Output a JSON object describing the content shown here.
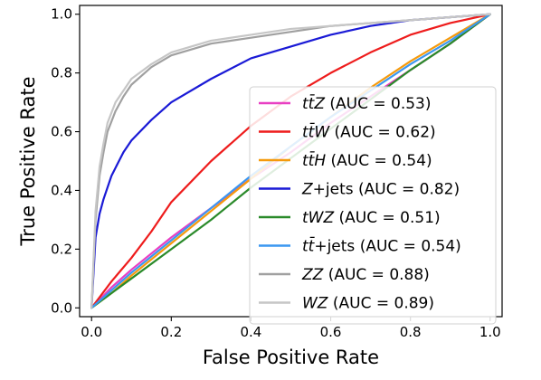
{
  "chart_data": {
    "type": "line",
    "xlabel": "False Positive Rate",
    "ylabel": "True Positive Rate",
    "xlim": [
      -0.03,
      1.03
    ],
    "ylim": [
      -0.03,
      1.03
    ],
    "xticks": [
      "0.0",
      "0.2",
      "0.4",
      "0.6",
      "0.8",
      "1.0"
    ],
    "yticks": [
      "0.0",
      "0.2",
      "0.4",
      "0.6",
      "0.8",
      "1.0"
    ],
    "grid": false,
    "legend_position": "lower-right",
    "series": [
      {
        "name": "ttZ",
        "label_math": "tt̄Z",
        "label_text": "(AUC = 0.53)",
        "color": "#e83fc3",
        "x": [
          0.0,
          0.05,
          0.1,
          0.2,
          0.3,
          0.4,
          0.5,
          0.6,
          0.7,
          0.8,
          0.9,
          1.0
        ],
        "y": [
          0.0,
          0.07,
          0.13,
          0.24,
          0.34,
          0.44,
          0.53,
          0.63,
          0.72,
          0.81,
          0.9,
          1.0
        ]
      },
      {
        "name": "ttW",
        "label_math": "tt̄W",
        "label_text": "(AUC = 0.62)",
        "color": "#ee1c1c",
        "x": [
          0.0,
          0.05,
          0.1,
          0.15,
          0.2,
          0.3,
          0.4,
          0.5,
          0.6,
          0.7,
          0.8,
          0.9,
          1.0
        ],
        "y": [
          0.0,
          0.09,
          0.17,
          0.26,
          0.36,
          0.5,
          0.62,
          0.72,
          0.8,
          0.87,
          0.93,
          0.97,
          1.0
        ]
      },
      {
        "name": "ttH",
        "label_math": "tt̄H",
        "label_text": "(AUC = 0.54)",
        "color": "#f59a0c",
        "x": [
          0.0,
          0.05,
          0.1,
          0.2,
          0.3,
          0.4,
          0.5,
          0.6,
          0.7,
          0.8,
          0.9,
          1.0
        ],
        "y": [
          0.0,
          0.05,
          0.11,
          0.22,
          0.33,
          0.44,
          0.55,
          0.65,
          0.75,
          0.84,
          0.92,
          1.0
        ]
      },
      {
        "name": "Z+jets",
        "label_math": "Z",
        "label_text": "+jets (AUC = 0.82)",
        "color": "#1a1ad6",
        "x": [
          0.0,
          0.01,
          0.02,
          0.03,
          0.05,
          0.08,
          0.1,
          0.15,
          0.2,
          0.3,
          0.4,
          0.5,
          0.6,
          0.7,
          0.8,
          0.9,
          1.0
        ],
        "y": [
          0.0,
          0.24,
          0.32,
          0.37,
          0.45,
          0.53,
          0.57,
          0.64,
          0.7,
          0.78,
          0.85,
          0.89,
          0.93,
          0.96,
          0.98,
          0.99,
          1.0
        ]
      },
      {
        "name": "tWZ",
        "label_math": "tWZ",
        "label_text": "(AUC = 0.51)",
        "color": "#2a8a2a",
        "x": [
          0.0,
          0.05,
          0.1,
          0.2,
          0.3,
          0.4,
          0.5,
          0.6,
          0.7,
          0.8,
          0.9,
          1.0
        ],
        "y": [
          0.0,
          0.05,
          0.1,
          0.2,
          0.3,
          0.41,
          0.51,
          0.61,
          0.71,
          0.81,
          0.9,
          1.0
        ]
      },
      {
        "name": "tt+jets",
        "label_math": "tt̄",
        "label_text": "+jets (AUC = 0.54)",
        "color": "#3b97f0",
        "x": [
          0.0,
          0.05,
          0.1,
          0.2,
          0.3,
          0.4,
          0.5,
          0.6,
          0.7,
          0.8,
          0.9,
          1.0
        ],
        "y": [
          0.0,
          0.06,
          0.12,
          0.23,
          0.34,
          0.45,
          0.55,
          0.65,
          0.74,
          0.83,
          0.91,
          1.0
        ]
      },
      {
        "name": "ZZ",
        "label_math": "ZZ",
        "label_text": "(AUC = 0.88)",
        "color": "#a0a0a0",
        "x": [
          0.0,
          0.01,
          0.02,
          0.03,
          0.04,
          0.06,
          0.08,
          0.1,
          0.15,
          0.2,
          0.3,
          0.4,
          0.5,
          0.6,
          0.7,
          0.8,
          0.9,
          1.0
        ],
        "y": [
          0.0,
          0.3,
          0.45,
          0.53,
          0.6,
          0.67,
          0.72,
          0.76,
          0.82,
          0.86,
          0.9,
          0.92,
          0.94,
          0.96,
          0.97,
          0.98,
          0.99,
          1.0
        ]
      },
      {
        "name": "WZ",
        "label_math": "WZ",
        "label_text": "(AUC = 0.89)",
        "color": "#c6c6c6",
        "x": [
          0.0,
          0.01,
          0.02,
          0.03,
          0.04,
          0.06,
          0.08,
          0.1,
          0.15,
          0.2,
          0.3,
          0.4,
          0.5,
          0.6,
          0.7,
          0.8,
          0.9,
          1.0
        ],
        "y": [
          0.0,
          0.33,
          0.48,
          0.56,
          0.63,
          0.7,
          0.74,
          0.78,
          0.83,
          0.87,
          0.91,
          0.93,
          0.95,
          0.96,
          0.97,
          0.98,
          0.99,
          1.0
        ]
      }
    ]
  }
}
